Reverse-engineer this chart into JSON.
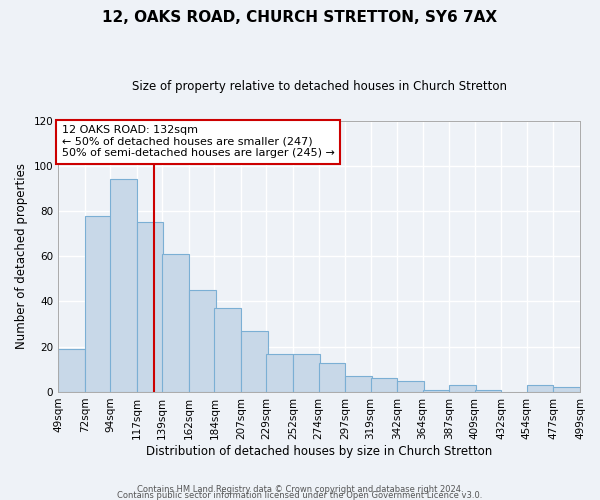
{
  "title": "12, OAKS ROAD, CHURCH STRETTON, SY6 7AX",
  "subtitle": "Size of property relative to detached houses in Church Stretton",
  "xlabel": "Distribution of detached houses by size in Church Stretton",
  "ylabel": "Number of detached properties",
  "bar_color": "#c8d8e8",
  "bar_edge_color": "#7bafd4",
  "background_color": "#eef2f7",
  "grid_color": "#ffffff",
  "vline_x": 132,
  "vline_color": "#cc0000",
  "annotation_text": "12 OAKS ROAD: 132sqm\n← 50% of detached houses are smaller (247)\n50% of semi-detached houses are larger (245) →",
  "annotation_box_color": "#ffffff",
  "annotation_box_edge_color": "#cc0000",
  "bins_left_edges": [
    49,
    72,
    94,
    117,
    139,
    162,
    184,
    207,
    229,
    252,
    274,
    297,
    319,
    342,
    364,
    387,
    409,
    432,
    454,
    477
  ],
  "bin_width": 23,
  "bar_heights": [
    19,
    78,
    94,
    75,
    61,
    45,
    37,
    27,
    17,
    17,
    13,
    7,
    6,
    5,
    1,
    3,
    1,
    0,
    3,
    2
  ],
  "tick_labels": [
    "49sqm",
    "72sqm",
    "94sqm",
    "117sqm",
    "139sqm",
    "162sqm",
    "184sqm",
    "207sqm",
    "229sqm",
    "252sqm",
    "274sqm",
    "297sqm",
    "319sqm",
    "342sqm",
    "364sqm",
    "387sqm",
    "409sqm",
    "432sqm",
    "454sqm",
    "477sqm",
    "499sqm"
  ],
  "ylim": [
    0,
    120
  ],
  "yticks": [
    0,
    20,
    40,
    60,
    80,
    100,
    120
  ],
  "footer_line1": "Contains HM Land Registry data © Crown copyright and database right 2024.",
  "footer_line2": "Contains public sector information licensed under the Open Government Licence v3.0."
}
